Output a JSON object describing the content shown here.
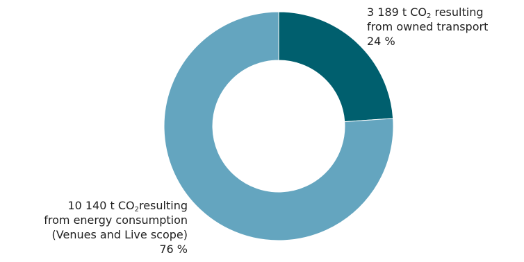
{
  "chart_data": {
    "type": "pie",
    "style": "donut",
    "slices": [
      {
        "name": "owned transport",
        "value": 3189,
        "percent": 24,
        "color": "#005f6e",
        "label": {
          "amount": "3 189 t CO",
          "co2_subscript": "2",
          "suffix": " resulting",
          "lines": [
            "from owned transport"
          ],
          "percent_text": "24 %"
        }
      },
      {
        "name": "energy consumption",
        "value": 10140,
        "percent": 76,
        "color": "#64a5bf",
        "label": {
          "amount": "10 140 t CO",
          "co2_subscript": "2",
          "suffix": "resulting",
          "lines": [
            "from energy consumption",
            "(Venues and Live scope)"
          ],
          "percent_text": "76 %"
        }
      }
    ]
  }
}
